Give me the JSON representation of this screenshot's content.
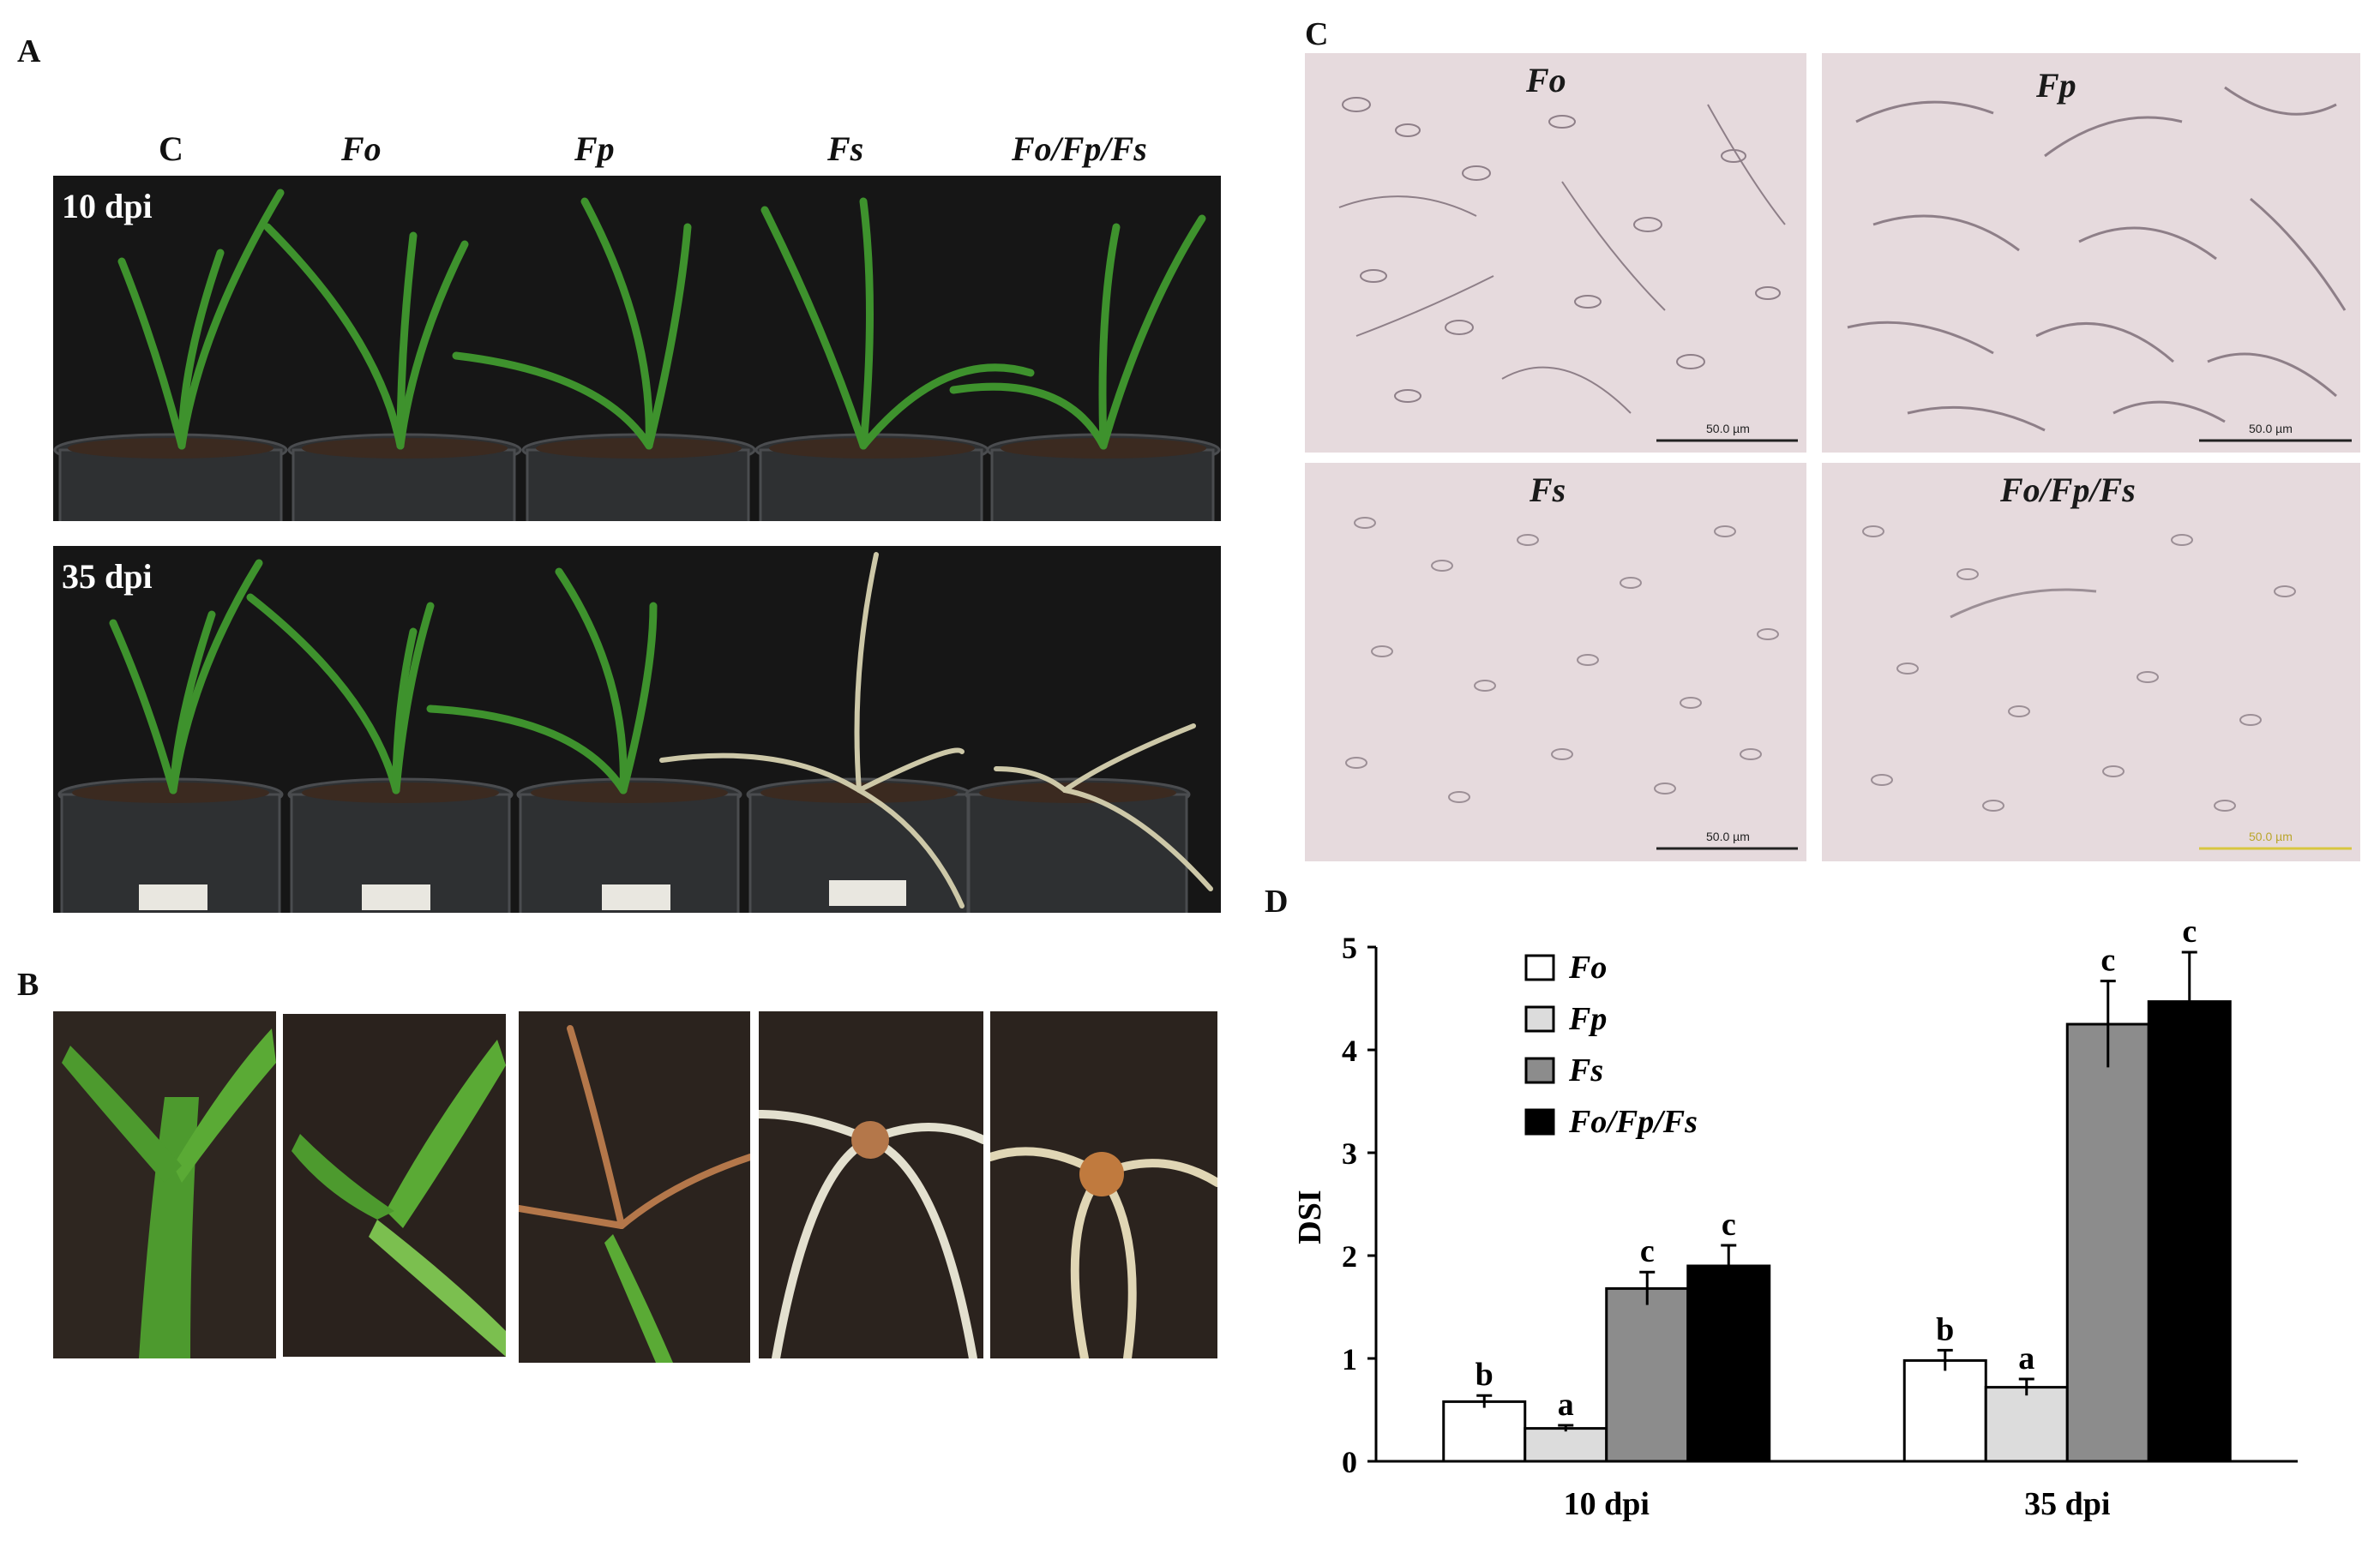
{
  "panels": {
    "a": "A",
    "b": "B",
    "c": "C",
    "d": "D"
  },
  "panel_a": {
    "columns": [
      "C",
      "Fo",
      "Fp",
      "Fs",
      "Fo/Fp/Fs"
    ],
    "row1_label": "10 dpi",
    "row2_label": "35 dpi"
  },
  "panel_c": {
    "cells": [
      {
        "label": "Fo",
        "scale": "50.0 µm"
      },
      {
        "label": "Fp",
        "scale": "50.0 µm"
      },
      {
        "label": "Fs",
        "scale": "50.0 µm"
      },
      {
        "label": "Fo/Fp/Fs",
        "scale": "50.0 µm"
      }
    ]
  },
  "colors": {
    "pot": "#2f3133",
    "leaf": "#3c8f2c",
    "bg_photo": "#161616",
    "micro_bg": "#e6dadd"
  },
  "chart_data": {
    "type": "bar",
    "categories": [
      "10 dpi",
      "35 dpi"
    ],
    "ylabel": "DSI",
    "xlabel": "",
    "ylim": [
      0,
      5
    ],
    "yticks": [
      0,
      1,
      2,
      3,
      4,
      5
    ],
    "legend_position": "top-left",
    "series": [
      {
        "name": "Fo",
        "color": "#ffffff",
        "values": [
          0.58,
          0.98
        ],
        "errors": [
          0.06,
          0.1
        ],
        "letters": [
          "b",
          "b"
        ]
      },
      {
        "name": "Fp",
        "color": "#dcdcdc",
        "values": [
          0.32,
          0.72
        ],
        "errors": [
          0.03,
          0.08
        ],
        "letters": [
          "a",
          "a"
        ]
      },
      {
        "name": "Fs",
        "color": "#8c8c8c",
        "values": [
          1.68,
          4.25
        ],
        "errors": [
          0.16,
          0.42
        ],
        "letters": [
          "c",
          "c"
        ]
      },
      {
        "name": "Fo/Fp/Fs",
        "color": "#000000",
        "values": [
          1.9,
          4.47
        ],
        "errors": [
          0.2,
          0.48
        ],
        "letters": [
          "c",
          "c"
        ]
      }
    ]
  }
}
